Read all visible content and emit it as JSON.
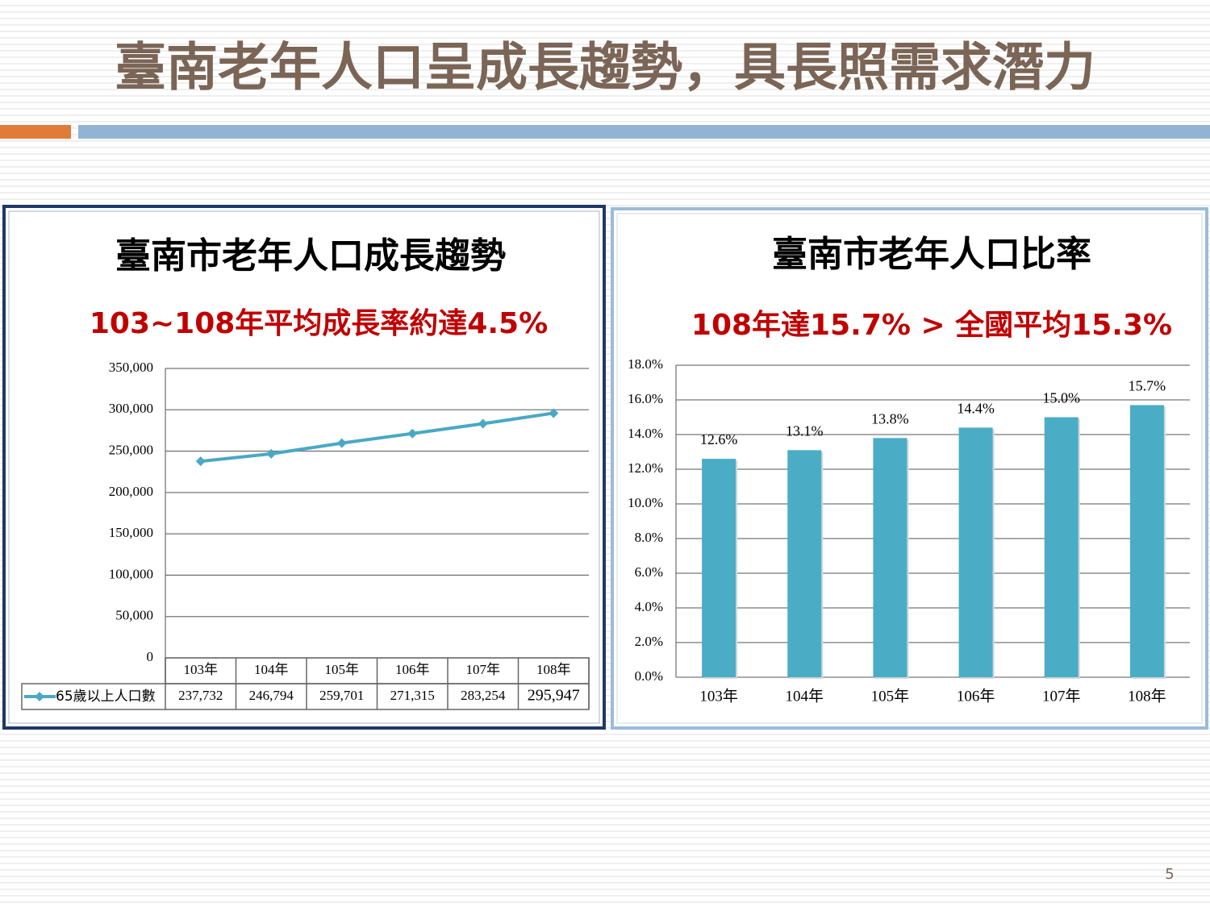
{
  "title": "臺南老年人口呈成長趨勢，具長照需求潛力",
  "page_number": "5",
  "chart_data": [
    {
      "type": "line",
      "title": "臺南市老年人口成長趨勢",
      "subtitle": "103~108年平均成長率約達4.5%",
      "categories": [
        "103年",
        "104年",
        "105年",
        "106年",
        "107年",
        "108年"
      ],
      "series": [
        {
          "name": "65歲以上人口數",
          "color": "#4aa8c4",
          "values": [
            237732,
            246794,
            259701,
            271315,
            283254,
            295947
          ],
          "value_labels": [
            "237,732",
            "246,794",
            "259,701",
            "271,315",
            "283,254",
            "295,947"
          ]
        }
      ],
      "ylim": [
        0,
        350000
      ],
      "yticks": [
        0,
        {
          "value": 50000,
          "label": "50,000"
        },
        {
          "value": 100000,
          "label": "100,000"
        },
        {
          "value": 150000,
          "label": "150,000"
        },
        {
          "value": 200000,
          "label": "200,000"
        },
        {
          "value": 250000,
          "label": "250,000"
        },
        {
          "value": 300000,
          "label": "300,000"
        },
        {
          "value": 350000,
          "label": "350,000"
        }
      ],
      "grid": true
    },
    {
      "type": "bar",
      "title": "臺南市老年人口比率",
      "subtitle": "108年達15.7% > 全國平均15.3%",
      "categories": [
        "103年",
        "104年",
        "105年",
        "106年",
        "107年",
        "108年"
      ],
      "values": [
        12.6,
        13.1,
        13.8,
        14.4,
        15.0,
        15.7
      ],
      "value_labels": [
        "12.6%",
        "13.1%",
        "13.8%",
        "14.4%",
        "15.0%",
        "15.7%"
      ],
      "color": "#4bacc6",
      "ylim": [
        0,
        18
      ],
      "yticks": [
        {
          "value": 0,
          "label": "0.0%"
        },
        {
          "value": 2,
          "label": "2.0%"
        },
        {
          "value": 4,
          "label": "4.0%"
        },
        {
          "value": 6,
          "label": "6.0%"
        },
        {
          "value": 8,
          "label": "8.0%"
        },
        {
          "value": 10,
          "label": "10.0%"
        },
        {
          "value": 12,
          "label": "12.0%"
        },
        {
          "value": 14,
          "label": "14.0%"
        },
        {
          "value": 16,
          "label": "16.0%"
        },
        {
          "value": 18,
          "label": "18.0%"
        }
      ],
      "grid": true
    }
  ]
}
